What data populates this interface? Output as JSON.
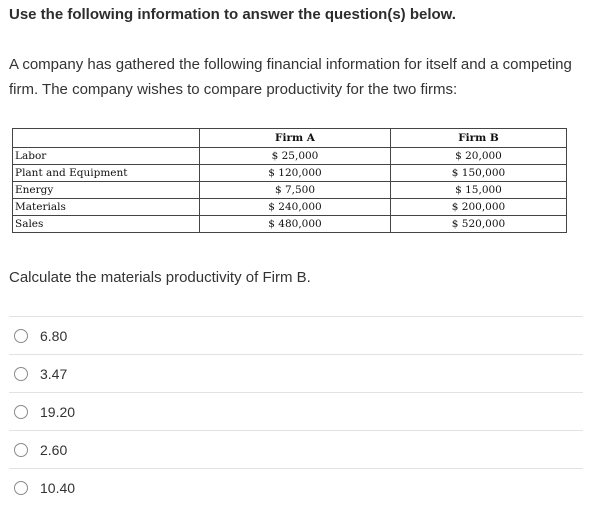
{
  "header": {
    "title": "Use the following information to answer the question(s) below."
  },
  "intro": "A company has gathered the following financial information for itself and a competing firm. The company wishes to compare productivity for the two firms:",
  "table": {
    "columns": [
      "",
      "Firm A",
      "Firm B"
    ],
    "rows": [
      {
        "label": "Labor",
        "firm_a": "$ 25,000",
        "firm_b": "$ 20,000"
      },
      {
        "label": "Plant and Equipment",
        "firm_a": "$ 120,000",
        "firm_b": "$ 150,000"
      },
      {
        "label": "Energy",
        "firm_a": "$ 7,500",
        "firm_b": "$ 15,000"
      },
      {
        "label": "Materials",
        "firm_a": "$ 240,000",
        "firm_b": "$ 200,000"
      },
      {
        "label": "Sales",
        "firm_a": "$ 480,000",
        "firm_b": "$ 520,000"
      }
    ]
  },
  "question": "Calculate the materials productivity of Firm B.",
  "options": [
    {
      "label": "6.80",
      "selected": false
    },
    {
      "label": "3.47",
      "selected": false
    },
    {
      "label": "19.20",
      "selected": false
    },
    {
      "label": "2.60",
      "selected": false
    },
    {
      "label": "10.40",
      "selected": false
    }
  ]
}
